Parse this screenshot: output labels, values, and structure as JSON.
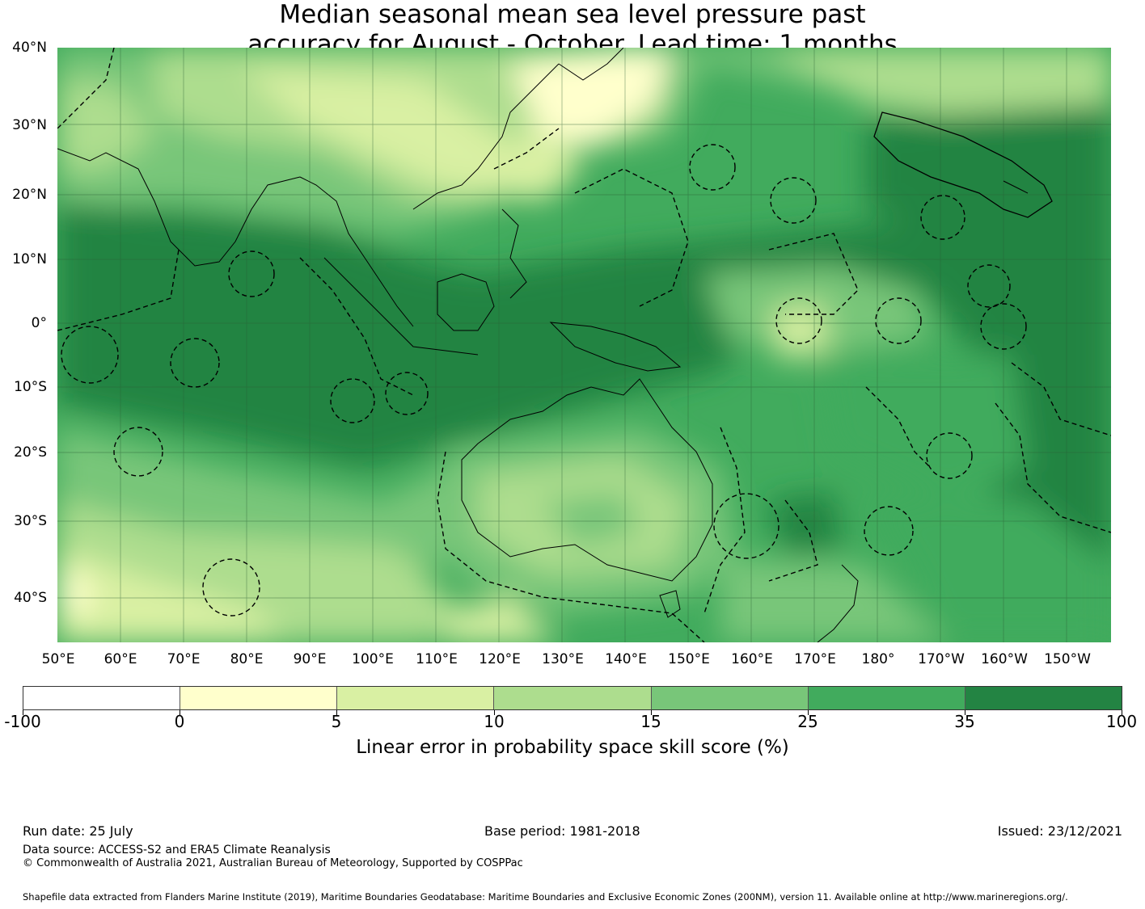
{
  "title_line1": "Median seasonal mean sea level pressure past",
  "title_line2": "accuracy for August - October. Lead time: 1 months",
  "latitude_labels": [
    "40°N",
    "30°N",
    "20°N",
    "10°N",
    "0°",
    "10°S",
    "20°S",
    "30°S",
    "40°S"
  ],
  "longitude_labels": [
    "50°E",
    "60°E",
    "70°E",
    "80°E",
    "90°E",
    "100°E",
    "110°E",
    "120°E",
    "130°E",
    "140°E",
    "150°E",
    "160°E",
    "170°E",
    "180°",
    "170°W",
    "160°W",
    "150°W"
  ],
  "colorbar": {
    "ticks": [
      "-100",
      "0",
      "5",
      "10",
      "15",
      "25",
      "35",
      "100"
    ],
    "colors": [
      "#ffffff",
      "#ffffcc",
      "#d9f0a3",
      "#addd8e",
      "#78c679",
      "#41ab5d",
      "#238443"
    ],
    "label": "Linear error in probability space skill score (%)"
  },
  "footer": {
    "run_date": "Run date: 25 July",
    "base_period": "Base period: 1981-2018",
    "issued": "Issued: 23/12/2021",
    "data_source": "Data source: ACCESS-S2 and ERA5 Climate Reanalysis",
    "copyright": "© Commonwealth of Australia 2021, Australian Bureau of Meteorology, Supported by COSPPac",
    "shapefile": "Shapefile data extracted from Flanders Marine Institute (2019), Maritime Boundaries Geodatabase: Maritime Boundaries and Exclusive Economic Zones (200NM), version 11. Available online at http://www.marineregions.org/."
  }
}
